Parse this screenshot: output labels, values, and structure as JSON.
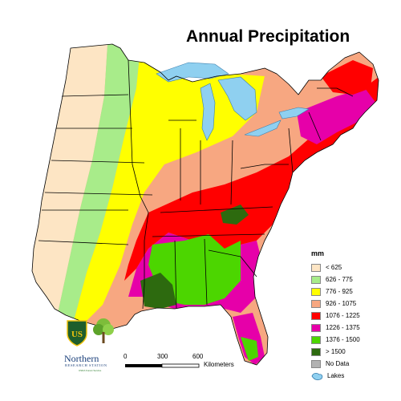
{
  "map": {
    "title": "Annual Precipitation",
    "legend": {
      "unit": "mm",
      "classes": [
        {
          "label": "< 625",
          "color": "#fde5c4"
        },
        {
          "label": "626 - 775",
          "color": "#a8ec8a"
        },
        {
          "label": "776 - 925",
          "color": "#ffff00"
        },
        {
          "label": "926 - 1075",
          "color": "#f7a781"
        },
        {
          "label": "1076 - 1225",
          "color": "#ff0000"
        },
        {
          "label": "1226 - 1375",
          "color": "#e600a9"
        },
        {
          "label": "1376 - 1500",
          "color": "#4cd600"
        },
        {
          "label": "> 1500",
          "color": "#2d6a0f"
        },
        {
          "label": "No Data",
          "color": "#b2b2b2"
        }
      ],
      "lakes_label": "Lakes",
      "lakes_color": "#8fd0f0"
    },
    "scale_bar": {
      "ticks": [
        "0",
        "300",
        "600"
      ],
      "unit": "Kilometers"
    },
    "logos": {
      "org_name": "Northern",
      "org_sub": "RESEARCH STATION",
      "org_small": "USDA Forest Service",
      "shield_text": "US"
    }
  }
}
